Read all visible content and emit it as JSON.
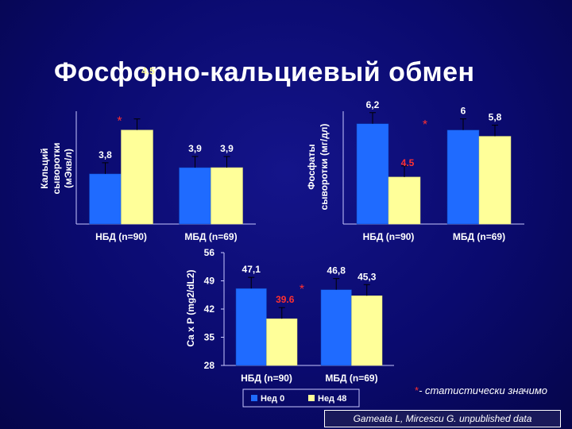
{
  "title": "Фосфорно-кальциевый обмен",
  "colors": {
    "week0": "#1f6bff",
    "week48": "#ffff99",
    "star": "#ff3030",
    "text": "#ffffff"
  },
  "chart_data": [
    {
      "type": "bar",
      "ylabel_lines": [
        "Кальций",
        "сыворотки",
        "(мЭкв/л)"
      ],
      "categories": [
        "НБД (n=90)",
        "МБД (n=69)"
      ],
      "series": [
        {
          "name": "Нед 0",
          "values": [
            3.8,
            3.9
          ],
          "labels": [
            "3,8",
            "3,9"
          ]
        },
        {
          "name": "Нед 48",
          "values": [
            4.5,
            3.9
          ],
          "labels": [
            "4.5",
            "3,9"
          ]
        }
      ],
      "error_bars": true,
      "significance": [
        {
          "category": 0,
          "marker": "*"
        }
      ],
      "highlighted_labels": [
        {
          "series": 1,
          "category": 0,
          "color": "#ffff99"
        }
      ]
    },
    {
      "type": "bar",
      "ylabel_lines": [
        "Фосфаты",
        "сыворотки (мг/дл)"
      ],
      "categories": [
        "НБД (n=90)",
        "МБД (n=69)"
      ],
      "series": [
        {
          "name": "Нед 0",
          "values": [
            6.2,
            6.0
          ],
          "labels": [
            "6,2",
            "6"
          ]
        },
        {
          "name": "Нед 48",
          "values": [
            4.5,
            5.8
          ],
          "labels": [
            "4.5",
            "5,8"
          ]
        }
      ],
      "error_bars": true,
      "significance": [
        {
          "category": 0,
          "marker": "*"
        }
      ],
      "highlighted_labels": [
        {
          "series": 1,
          "category": 0,
          "color": "#ff3030"
        }
      ]
    },
    {
      "type": "bar",
      "ylabel": "Ca x P (mg2/dL2)",
      "ylim": [
        28,
        56
      ],
      "yticks": [
        "28",
        "35",
        "42",
        "49",
        "56"
      ],
      "categories": [
        "НБД (n=90)",
        "МБД (n=69)"
      ],
      "series": [
        {
          "name": "Нед 0",
          "values": [
            47.1,
            46.8
          ],
          "labels": [
            "47,1",
            "46,8"
          ]
        },
        {
          "name": "Нед 48",
          "values": [
            39.6,
            45.3
          ],
          "labels": [
            "39.6",
            "45,3"
          ]
        }
      ],
      "error_bars": true,
      "significance": [
        {
          "category": 0,
          "marker": "*"
        }
      ],
      "highlighted_labels": [
        {
          "series": 1,
          "category": 0,
          "color": "#ff3030"
        }
      ],
      "legend": {
        "placement": "bottom",
        "entries": [
          "Нед 0",
          "Нед 48"
        ]
      }
    }
  ],
  "footnote": {
    "star": "*",
    "text": "- статистически значимо"
  },
  "source": "Gameata L, Mircescu G. unpublished data"
}
